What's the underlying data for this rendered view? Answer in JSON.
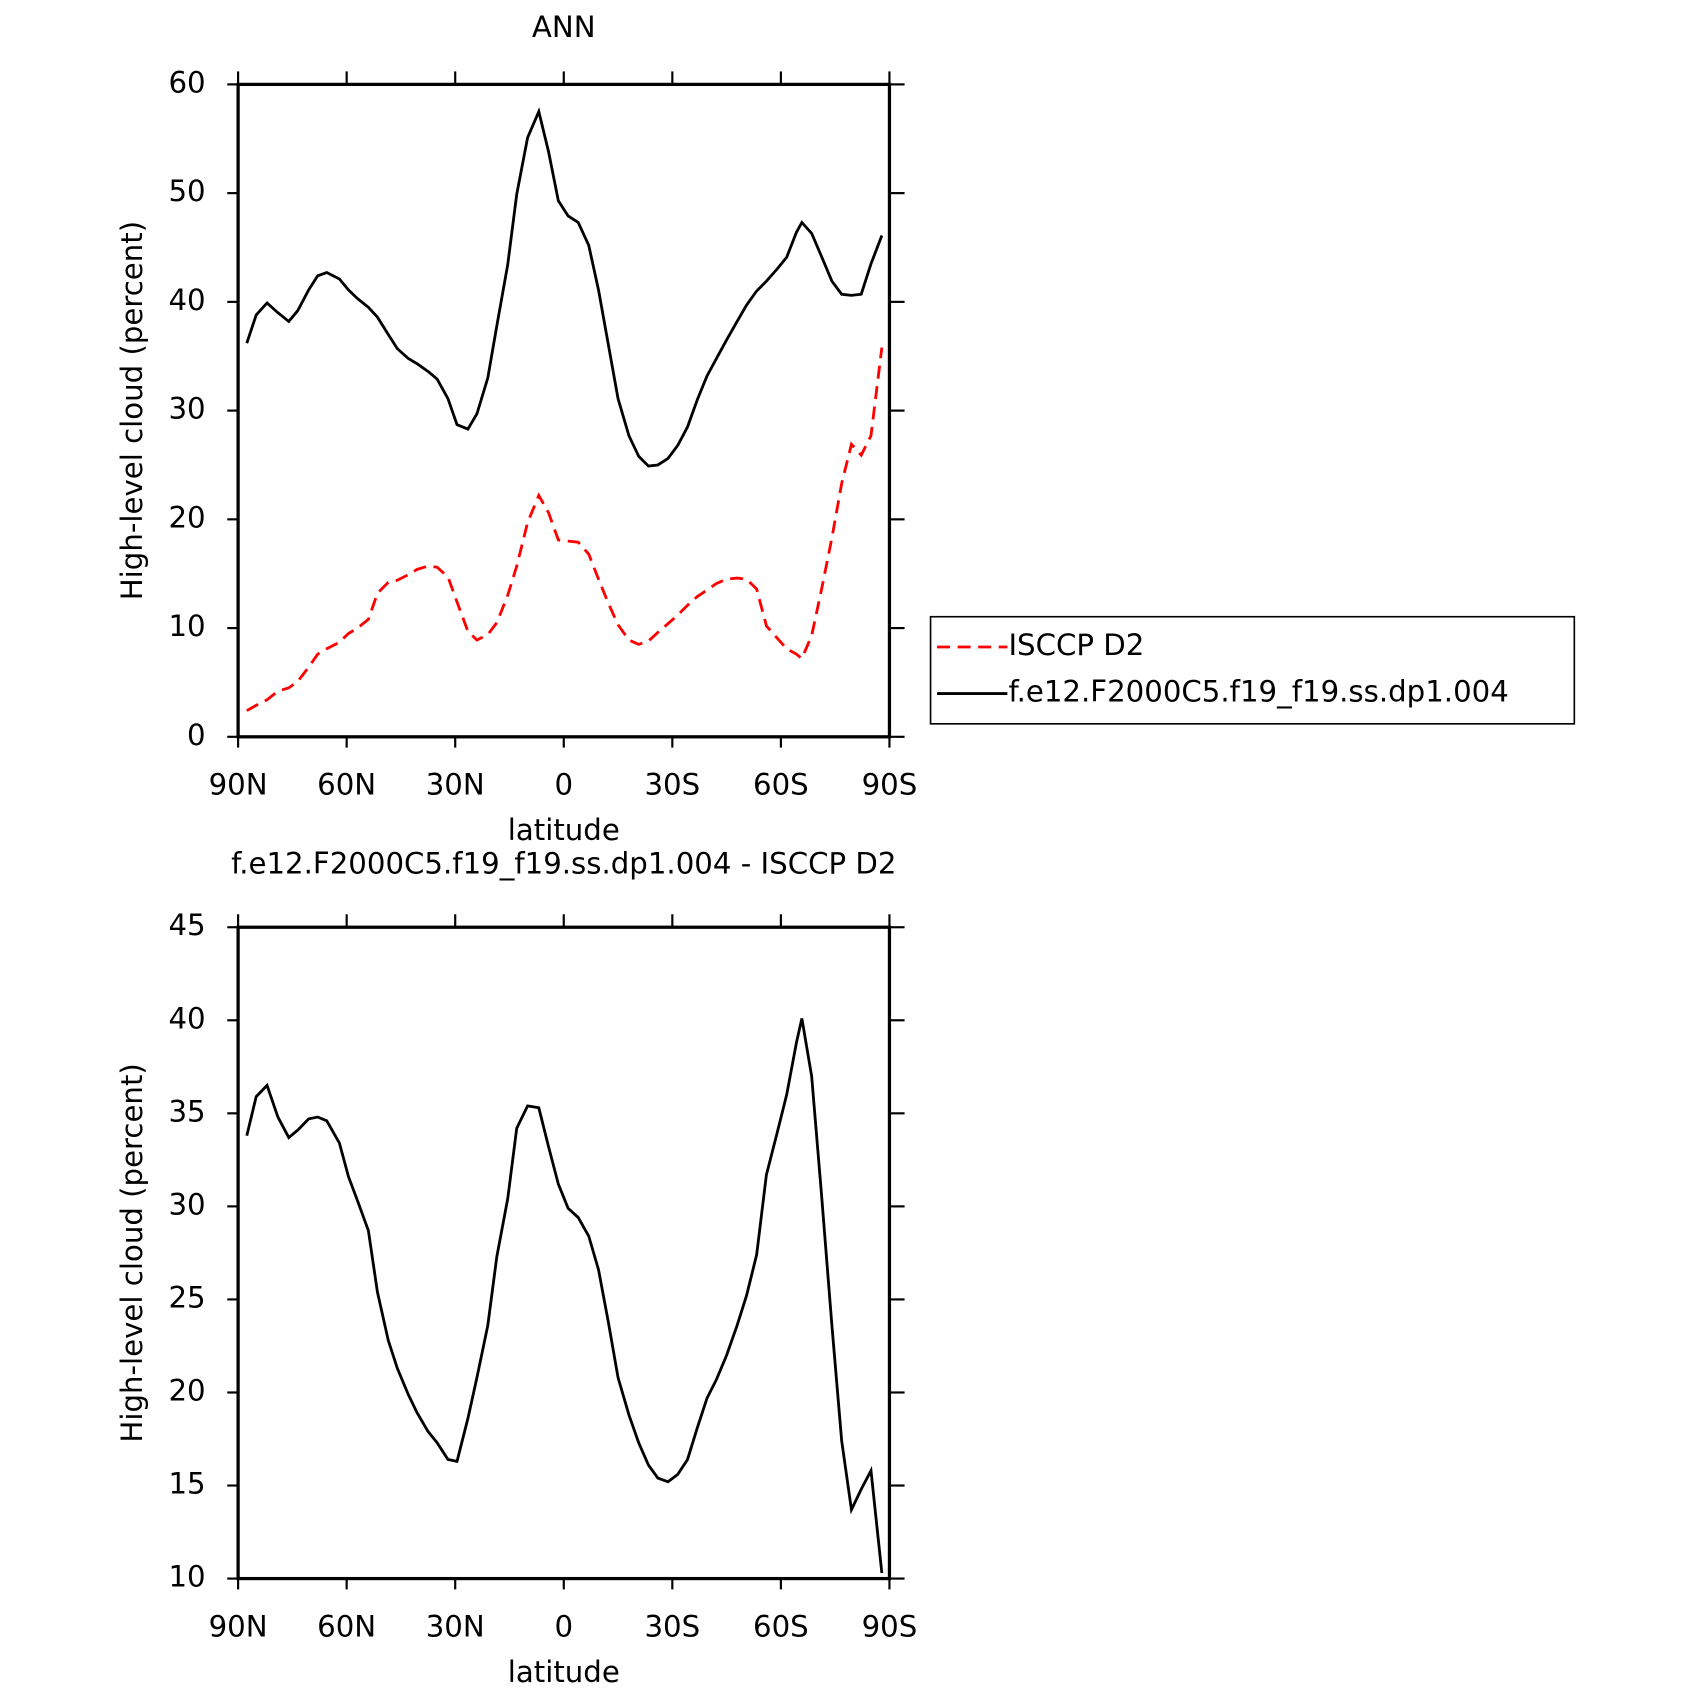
{
  "chart_data": [
    {
      "type": "line",
      "title": "ANN",
      "xlabel": "latitude",
      "ylabel": "High-level cloud (percent)",
      "xlim": [
        90,
        -90
      ],
      "xticks": [
        {
          "value": 90,
          "label": "90N"
        },
        {
          "value": 60,
          "label": "60N"
        },
        {
          "value": 30,
          "label": "30N"
        },
        0,
        {
          "value": -30,
          "label": "30S"
        },
        {
          "value": -60,
          "label": "60S"
        },
        {
          "value": -90,
          "label": "90S"
        }
      ],
      "ylim": [
        0,
        60
      ],
      "yticks": [
        0,
        10,
        20,
        30,
        40,
        50,
        60
      ],
      "x": [
        87.6,
        85,
        82,
        79,
        76,
        73.5,
        70.5,
        68,
        65.5,
        62,
        59.5,
        57,
        54,
        51.5,
        48.5,
        46,
        43,
        40.5,
        37.5,
        35,
        32,
        29.5,
        26.5,
        24,
        21,
        18.5,
        15.5,
        13,
        10,
        6.9,
        4.2,
        1.5,
        -1.2,
        -4,
        -6.9,
        -9.6,
        -12.3,
        -15,
        -18,
        -20.7,
        -23.4,
        -26,
        -28.8,
        -31.5,
        -34.2,
        -36.9,
        -39.6,
        -42.2,
        -45,
        -47.9,
        -50.5,
        -53.3,
        -56,
        -58.9,
        -61.6,
        -64.3,
        -65.8,
        -68.5,
        -71.2,
        -74.1,
        -76.8,
        -79.5,
        -82.2,
        -84.9,
        -87.9
      ],
      "series": [
        {
          "name": "ISCCP D2",
          "color": "#ff0000",
          "dashed": true,
          "values": [
            2.4,
            2.9,
            3.4,
            4.2,
            4.5,
            5.1,
            6.4,
            7.6,
            8.1,
            8.7,
            9.5,
            10.0,
            10.8,
            13.2,
            14.2,
            14.4,
            14.9,
            15.4,
            15.7,
            15.6,
            14.7,
            12.4,
            9.7,
            8.9,
            9.4,
            10.5,
            13.0,
            15.7,
            19.7,
            22.2,
            20.6,
            18.1,
            18.0,
            17.9,
            16.8,
            14.5,
            12.3,
            10.3,
            8.9,
            8.5,
            8.8,
            9.6,
            10.4,
            11.2,
            12.1,
            12.9,
            13.5,
            14.1,
            14.5,
            14.6,
            14.5,
            13.6,
            10.2,
            9.1,
            8.1,
            7.6,
            7.2,
            9.3,
            13.5,
            18.3,
            23.3,
            26.9,
            25.9,
            27.7,
            35.8
          ]
        },
        {
          "name": "f.e12.F2000C5.f19_f19.ss.dp1.004",
          "color": "#000000",
          "dashed": false,
          "values": [
            36.2,
            38.8,
            39.9,
            39.0,
            38.2,
            39.2,
            41.1,
            42.4,
            42.7,
            42.1,
            41.1,
            40.3,
            39.5,
            38.6,
            37.0,
            35.7,
            34.8,
            34.3,
            33.6,
            32.9,
            31.1,
            28.7,
            28.3,
            29.7,
            33.0,
            37.8,
            43.4,
            49.9,
            55.1,
            57.5,
            53.8,
            49.3,
            47.9,
            47.3,
            45.2,
            41.1,
            36.1,
            31.1,
            27.7,
            25.8,
            24.9,
            25.0,
            25.6,
            26.8,
            28.5,
            31.0,
            33.2,
            34.8,
            36.5,
            38.2,
            39.7,
            41.0,
            41.9,
            43.0,
            44.1,
            46.4,
            47.3,
            46.3,
            44.2,
            41.9,
            40.7,
            40.6,
            40.7,
            43.5,
            46.1
          ]
        }
      ]
    },
    {
      "type": "line",
      "title": "f.e12.F2000C5.f19_f19.ss.dp1.004 - ISCCP D2",
      "xlabel": "latitude",
      "ylabel": "High-level cloud (percent)",
      "xlim": [
        90,
        -90
      ],
      "xticks": [
        {
          "value": 90,
          "label": "90N"
        },
        {
          "value": 60,
          "label": "60N"
        },
        {
          "value": 30,
          "label": "30N"
        },
        0,
        {
          "value": -30,
          "label": "30S"
        },
        {
          "value": -60,
          "label": "60S"
        },
        {
          "value": -90,
          "label": "90S"
        }
      ],
      "ylim": [
        10,
        45
      ],
      "yticks": [
        10,
        15,
        20,
        25,
        30,
        35,
        40,
        45
      ],
      "x": [
        87.6,
        85,
        82,
        79,
        76,
        73.5,
        70.5,
        68,
        65.5,
        62,
        59.5,
        57,
        54,
        51.5,
        48.5,
        46,
        43,
        40.5,
        37.5,
        35,
        32,
        29.5,
        26.5,
        24,
        21,
        18.5,
        15.5,
        13,
        10,
        6.9,
        4.2,
        1.5,
        -1.2,
        -4,
        -6.9,
        -9.6,
        -12.3,
        -15,
        -18,
        -20.7,
        -23.4,
        -26,
        -28.8,
        -31.5,
        -34.2,
        -36.9,
        -39.6,
        -42.2,
        -45,
        -47.9,
        -50.5,
        -53.3,
        -56,
        -58.9,
        -61.6,
        -64.3,
        -65.8,
        -68.5,
        -71.2,
        -74.1,
        -76.8,
        -79.5,
        -82.2,
        -84.9,
        -87.9
      ],
      "color": "#000000",
      "values": [
        33.8,
        35.9,
        36.5,
        34.8,
        33.7,
        34.1,
        34.7,
        34.8,
        34.6,
        33.4,
        31.6,
        30.3,
        28.7,
        25.4,
        22.8,
        21.3,
        19.9,
        18.9,
        17.9,
        17.3,
        16.4,
        16.3,
        18.6,
        20.8,
        23.6,
        27.3,
        30.4,
        34.2,
        35.4,
        35.3,
        33.2,
        31.2,
        29.9,
        29.4,
        28.4,
        26.6,
        23.8,
        20.8,
        18.8,
        17.3,
        16.1,
        15.4,
        15.2,
        15.6,
        16.4,
        18.1,
        19.7,
        20.7,
        22.0,
        23.6,
        25.2,
        27.4,
        31.7,
        33.9,
        36.0,
        38.8,
        40.1,
        37.0,
        30.7,
        23.6,
        17.4,
        13.7,
        14.8,
        15.8,
        10.3
      ]
    }
  ]
}
